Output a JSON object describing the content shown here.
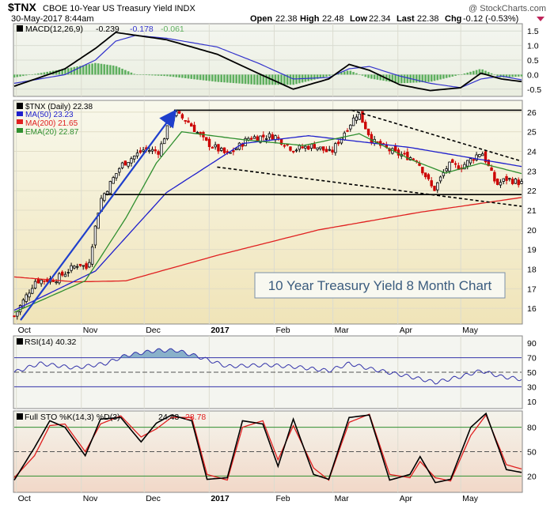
{
  "header": {
    "symbol": "$TNX",
    "name": "CBOE 10-Year US Treasury Yield INDX",
    "date": "30-May-2017 8:44am",
    "open_label": "Open",
    "open": "22.38",
    "high_label": "High",
    "high": "22.48",
    "low_label": "Low",
    "low": "22.34",
    "last_label": "Last",
    "last": "22.38",
    "chg_label": "Chg",
    "chg": "-0.12 (-0.53%)",
    "watermark": "@ StockCharts.com"
  },
  "colors": {
    "price_up": "#000000",
    "price_down": "#cc0000",
    "ma50": "#1f1fcc",
    "ma200": "#e02020",
    "ema20": "#2f8f2f",
    "macd_line": "#000000",
    "macd_signal": "#3333cc",
    "macd_hist": "#5faf5f",
    "rsi_line": "#3333aa",
    "sto_k": "#000000",
    "sto_d": "#e02020",
    "trend_arrow": "#1f3fcc",
    "price_bg_top": "#f7f7ea",
    "price_bg_bottom": "#f2e9c0",
    "panel_bg": "#eef0ea"
  },
  "macd": {
    "label": "MACD(12,26,9)",
    "macd": "-0.239",
    "signal": "-0.178",
    "hist": "-0.061",
    "yticks": [
      "1.5",
      "1.0",
      "0.5",
      "0.0",
      "-0.5"
    ]
  },
  "price": {
    "label": "$TNX (Daily) 22.38",
    "ma50_label": "MA(50) 23.23",
    "ma200_label": "MA(200) 21.65",
    "ema20_label": "EMA(20) 22.87",
    "yticks": [
      "26",
      "25",
      "24",
      "23",
      "22",
      "21",
      "20",
      "19",
      "18",
      "17",
      "16"
    ],
    "annotation": "10 Year Treasury Yield 8 Month Chart"
  },
  "rsi": {
    "label": "RSI(14) 40.32",
    "yticks": [
      "90",
      "70",
      "50",
      "30",
      "10"
    ]
  },
  "sto": {
    "label": "Full STO %K(14,3) %D(3)",
    "k": "24.43",
    "d": "28.78",
    "yticks": [
      "80",
      "50",
      "20"
    ]
  },
  "xaxis": {
    "labels": [
      "Oct",
      "Nov",
      "Dec",
      "2017",
      "Feb",
      "Mar",
      "Apr",
      "May"
    ]
  },
  "chart_data": {
    "type": "line",
    "symbol": "$TNX",
    "y_range": [
      15.2,
      26.6
    ],
    "months": [
      "Oct",
      "Nov",
      "Dec",
      "2017",
      "Feb",
      "Mar",
      "Apr",
      "May"
    ],
    "close_anchors": [
      [
        "Sep 30",
        15.6
      ],
      [
        "Oct 10",
        17.4
      ],
      [
        "Oct 20",
        17.5
      ],
      [
        "Oct 31",
        18.3
      ],
      [
        "Nov 4",
        18.0
      ],
      [
        "Nov 10",
        21.5
      ],
      [
        "Nov 20",
        23.3
      ],
      [
        "Dec 1",
        24.1
      ],
      [
        "Dec 8",
        24.0
      ],
      [
        "Dec 15",
        26.0
      ],
      [
        "Dec 22",
        25.5
      ],
      [
        "Dec 30",
        24.5
      ],
      [
        "Jan 10",
        23.8
      ],
      [
        "Jan 20",
        24.7
      ],
      [
        "Feb 1",
        24.8
      ],
      [
        "Feb 10",
        24.1
      ],
      [
        "Feb 20",
        24.3
      ],
      [
        "Feb 28",
        23.9
      ],
      [
        "Mar 6",
        24.9
      ],
      [
        "Mar 13",
        26.0
      ],
      [
        "Mar 20",
        24.5
      ],
      [
        "Mar 31",
        23.9
      ],
      [
        "Apr 10",
        23.6
      ],
      [
        "Apr 18",
        22.0
      ],
      [
        "Apr 25",
        23.3
      ],
      [
        "May 1",
        23.2
      ],
      [
        "May 11",
        24.0
      ],
      [
        "May 18",
        22.3
      ],
      [
        "May 23",
        22.6
      ],
      [
        "May 30",
        22.38
      ]
    ],
    "ma50_anchors": [
      [
        0,
        15.9
      ],
      [
        0.16,
        17.9
      ],
      [
        0.3,
        21.9
      ],
      [
        0.45,
        24.4
      ],
      [
        0.58,
        24.8
      ],
      [
        0.78,
        24.2
      ],
      [
        1.0,
        23.23
      ]
    ],
    "ma200_anchors": [
      [
        0,
        17.6
      ],
      [
        0.12,
        17.35
      ],
      [
        0.22,
        17.4
      ],
      [
        0.4,
        18.7
      ],
      [
        0.6,
        20.0
      ],
      [
        0.8,
        20.9
      ],
      [
        1.0,
        21.65
      ]
    ],
    "ema20_anchors": [
      [
        0,
        15.8
      ],
      [
        0.14,
        17.4
      ],
      [
        0.22,
        20.6
      ],
      [
        0.28,
        23.4
      ],
      [
        0.33,
        25.0
      ],
      [
        0.45,
        24.6
      ],
      [
        0.57,
        24.3
      ],
      [
        0.68,
        24.9
      ],
      [
        0.78,
        23.6
      ],
      [
        0.85,
        22.9
      ],
      [
        0.92,
        23.4
      ],
      [
        1.0,
        22.87
      ]
    ],
    "horizontal_lines": [
      26.1,
      21.8
    ],
    "trendlines": [
      {
        "from": [
          0.665,
          26.1
        ],
        "to": [
          1.0,
          23.5
        ]
      },
      {
        "from": [
          0.4,
          23.2
        ],
        "to": [
          1.0,
          21.2
        ]
      }
    ],
    "arrow": {
      "from": [
        0.0,
        15.4
      ],
      "to": [
        0.315,
        26.1
      ]
    },
    "rsi": {
      "range": [
        0,
        100
      ],
      "levels": [
        70,
        50,
        30
      ],
      "anchors": [
        [
          0,
          50
        ],
        [
          0.05,
          62
        ],
        [
          0.12,
          56
        ],
        [
          0.18,
          62
        ],
        [
          0.22,
          73
        ],
        [
          0.28,
          80
        ],
        [
          0.32,
          80
        ],
        [
          0.36,
          72
        ],
        [
          0.42,
          58
        ],
        [
          0.5,
          60
        ],
        [
          0.56,
          57
        ],
        [
          0.62,
          52
        ],
        [
          0.66,
          62
        ],
        [
          0.7,
          55
        ],
        [
          0.78,
          44
        ],
        [
          0.83,
          36
        ],
        [
          0.88,
          44
        ],
        [
          0.92,
          52
        ],
        [
          0.96,
          44
        ],
        [
          1.0,
          40.32
        ]
      ]
    },
    "sto": {
      "range": [
        0,
        100
      ],
      "levels": [
        80,
        50,
        20
      ],
      "k_anchors": [
        [
          0,
          15
        ],
        [
          0.04,
          55
        ],
        [
          0.07,
          88
        ],
        [
          0.1,
          80
        ],
        [
          0.14,
          45
        ],
        [
          0.17,
          90
        ],
        [
          0.21,
          92
        ],
        [
          0.25,
          62
        ],
        [
          0.28,
          85
        ],
        [
          0.31,
          95
        ],
        [
          0.35,
          88
        ],
        [
          0.38,
          16
        ],
        [
          0.42,
          18
        ],
        [
          0.45,
          88
        ],
        [
          0.49,
          84
        ],
        [
          0.52,
          32
        ],
        [
          0.55,
          90
        ],
        [
          0.59,
          22
        ],
        [
          0.62,
          16
        ],
        [
          0.66,
          92
        ],
        [
          0.7,
          95
        ],
        [
          0.74,
          15
        ],
        [
          0.78,
          22
        ],
        [
          0.8,
          44
        ],
        [
          0.83,
          12
        ],
        [
          0.86,
          16
        ],
        [
          0.9,
          80
        ],
        [
          0.93,
          97
        ],
        [
          0.97,
          28
        ],
        [
          1.0,
          24.43
        ]
      ],
      "d_anchors": [
        [
          0,
          18
        ],
        [
          0.04,
          45
        ],
        [
          0.07,
          82
        ],
        [
          0.1,
          84
        ],
        [
          0.14,
          50
        ],
        [
          0.17,
          84
        ],
        [
          0.21,
          94
        ],
        [
          0.25,
          68
        ],
        [
          0.28,
          78
        ],
        [
          0.31,
          92
        ],
        [
          0.35,
          92
        ],
        [
          0.38,
          22
        ],
        [
          0.42,
          15
        ],
        [
          0.45,
          80
        ],
        [
          0.49,
          88
        ],
        [
          0.52,
          40
        ],
        [
          0.55,
          82
        ],
        [
          0.59,
          30
        ],
        [
          0.62,
          15
        ],
        [
          0.66,
          86
        ],
        [
          0.7,
          96
        ],
        [
          0.74,
          22
        ],
        [
          0.78,
          18
        ],
        [
          0.8,
          38
        ],
        [
          0.83,
          18
        ],
        [
          0.86,
          14
        ],
        [
          0.9,
          70
        ],
        [
          0.93,
          95
        ],
        [
          0.97,
          34
        ],
        [
          1.0,
          28.78
        ]
      ]
    },
    "macd": {
      "range": [
        -0.75,
        1.75
      ],
      "macd_anchors": [
        [
          0,
          -0.4
        ],
        [
          0.1,
          0.2
        ],
        [
          0.16,
          0.9
        ],
        [
          0.2,
          1.45
        ],
        [
          0.24,
          1.35
        ],
        [
          0.3,
          1.2
        ],
        [
          0.4,
          0.7
        ],
        [
          0.48,
          0.05
        ],
        [
          0.55,
          -0.5
        ],
        [
          0.62,
          -0.15
        ],
        [
          0.66,
          0.35
        ],
        [
          0.7,
          0.15
        ],
        [
          0.76,
          -0.35
        ],
        [
          0.82,
          -0.55
        ],
        [
          0.88,
          -0.45
        ],
        [
          0.92,
          0.05
        ],
        [
          0.96,
          -0.15
        ],
        [
          1.0,
          -0.239
        ]
      ],
      "signal_anchors": [
        [
          0,
          -0.3
        ],
        [
          0.1,
          0.0
        ],
        [
          0.16,
          0.5
        ],
        [
          0.2,
          1.15
        ],
        [
          0.24,
          1.35
        ],
        [
          0.3,
          1.25
        ],
        [
          0.4,
          0.95
        ],
        [
          0.48,
          0.4
        ],
        [
          0.55,
          -0.15
        ],
        [
          0.62,
          -0.1
        ],
        [
          0.66,
          0.2
        ],
        [
          0.7,
          0.28
        ],
        [
          0.76,
          -0.05
        ],
        [
          0.82,
          -0.3
        ],
        [
          0.88,
          -0.45
        ],
        [
          0.92,
          -0.15
        ],
        [
          0.96,
          -0.05
        ],
        [
          1.0,
          -0.178
        ]
      ]
    }
  }
}
